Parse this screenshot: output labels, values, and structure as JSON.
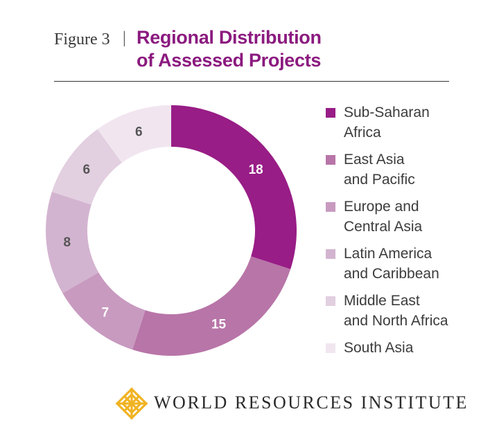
{
  "header": {
    "figure_label": "Figure 3",
    "separator": "|",
    "title_line1": "Regional Distribution",
    "title_line2": "of Assessed Projects"
  },
  "chart_data": {
    "type": "pie",
    "donut": true,
    "title": "Regional Distribution of Assessed Projects",
    "categories": [
      "Sub-Saharan Africa",
      "East Asia and Pacific",
      "Europe and Central Asia",
      "Latin America and Caribbean",
      "Middle East and North Africa",
      "South Asia"
    ],
    "values": [
      18,
      15,
      7,
      8,
      6,
      6
    ],
    "colors": [
      "#981d86",
      "#b875a8",
      "#c89ac0",
      "#d3b4d0",
      "#e2cfe0",
      "#f1e6f0"
    ],
    "legend_position": "right"
  },
  "legend": [
    {
      "line1": "Sub-Saharan",
      "line2": "Africa",
      "color": "#981d86"
    },
    {
      "line1": "East Asia",
      "line2": "and Pacific",
      "color": "#b875a8"
    },
    {
      "line1": "Europe and",
      "line2": "Central Asia",
      "color": "#c89ac0"
    },
    {
      "line1": "Latin America",
      "line2": "and Caribbean",
      "color": "#d3b4d0"
    },
    {
      "line1": "Middle East",
      "line2": "and North Africa",
      "color": "#e2cfe0"
    },
    {
      "line1": "South Asia",
      "line2": "",
      "color": "#f1e6f0"
    }
  ],
  "footer": {
    "logo_icon": "wri-logo-icon",
    "org_name": "WORLD RESOURCES INSTITUTE",
    "logo_color": "#f0b323"
  }
}
